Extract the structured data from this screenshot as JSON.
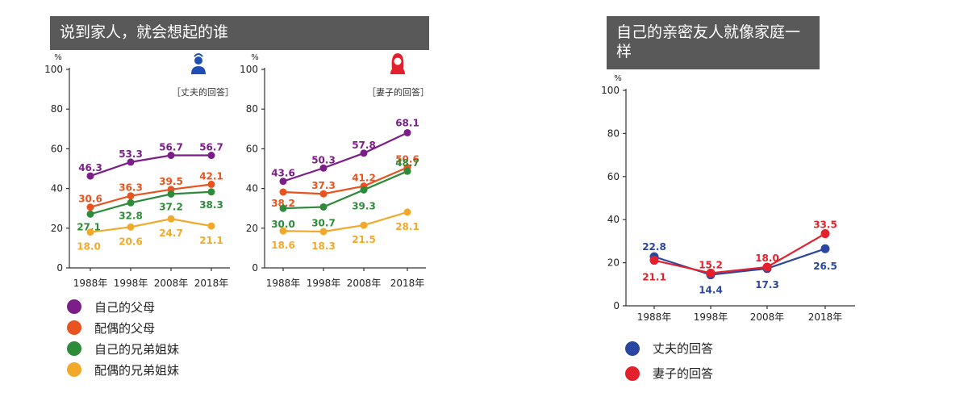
{
  "titles": {
    "left": "说到家人，就会想起的谁",
    "right": "自己的亲密友人就像家庭一样"
  },
  "legend_left": [
    {
      "label": "自己的父母",
      "color": "#7b1e87"
    },
    {
      "label": "配偶的父母",
      "color": "#e8531f"
    },
    {
      "label": "自己的兄弟姐妹",
      "color": "#2e8b3a"
    },
    {
      "label": "配偶的兄弟姐妹",
      "color": "#f2a929"
    }
  ],
  "legend_right": [
    {
      "label": "丈夫的回答",
      "color": "#2b46a0"
    },
    {
      "label": "妻子的回答",
      "color": "#e3202b"
    }
  ],
  "chart_data": [
    {
      "type": "line",
      "title": "丈夫的回答",
      "ylabel": "%",
      "categories": [
        "1988年",
        "1998年",
        "2008年",
        "2018年"
      ],
      "ylim": [
        0,
        100
      ],
      "yticks": [
        0,
        20,
        40,
        60,
        80,
        100
      ],
      "series": [
        {
          "name": "自己的父母",
          "color": "#7b1e87",
          "values": [
            46.3,
            53.3,
            56.7,
            56.7
          ],
          "labels": [
            "46.3",
            "53.3",
            "56.7",
            "56.7"
          ]
        },
        {
          "name": "配偶的父母",
          "color": "#e8531f",
          "values": [
            30.6,
            36.3,
            39.5,
            42.1
          ],
          "labels": [
            "30.6",
            "36.3",
            "39.5",
            "42.1"
          ]
        },
        {
          "name": "自己的兄弟姐妹",
          "color": "#2e8b3a",
          "values": [
            27.1,
            32.8,
            37.2,
            38.3
          ],
          "labels": [
            "27.1",
            "32.8",
            "37.2",
            "38.3"
          ]
        },
        {
          "name": "配偶的兄弟姐妹",
          "color": "#f2a929",
          "values": [
            18.0,
            20.6,
            24.7,
            21.1
          ],
          "labels": [
            "18.0",
            "20.6",
            "24.7",
            "21.1"
          ]
        }
      ]
    },
    {
      "type": "line",
      "title": "妻子的回答",
      "ylabel": "%",
      "categories": [
        "1988年",
        "1998年",
        "2008年",
        "2018年"
      ],
      "ylim": [
        0,
        100
      ],
      "yticks": [
        0,
        20,
        40,
        60,
        80,
        100
      ],
      "series": [
        {
          "name": "自己的父母",
          "color": "#7b1e87",
          "values": [
            43.6,
            50.3,
            57.8,
            68.1
          ],
          "labels": [
            "43.6",
            "50.3",
            "57.8",
            "68.1"
          ]
        },
        {
          "name": "配偶的父母",
          "color": "#e8531f",
          "values": [
            38.2,
            37.3,
            41.2,
            50.6
          ],
          "labels": [
            "38.2",
            "37.3",
            "41.2",
            "50.6"
          ]
        },
        {
          "name": "自己的兄弟姐妹",
          "color": "#2e8b3a",
          "values": [
            30.0,
            30.7,
            39.3,
            48.7
          ],
          "labels": [
            "30.0",
            "30.7",
            "39.3",
            "48.7"
          ]
        },
        {
          "name": "配偶的兄弟姐妹",
          "color": "#f2a929",
          "values": [
            18.6,
            18.3,
            21.5,
            28.1
          ],
          "labels": [
            "18.6",
            "18.3",
            "21.5",
            "28.1"
          ]
        }
      ]
    },
    {
      "type": "line",
      "title": "自己的亲密友人就像家庭一样",
      "ylabel": "%",
      "categories": [
        "1988年",
        "1998年",
        "2008年",
        "2018年"
      ],
      "ylim": [
        0,
        100
      ],
      "yticks": [
        0,
        20,
        40,
        60,
        80,
        100
      ],
      "series": [
        {
          "name": "丈夫的回答",
          "color": "#2b46a0",
          "values": [
            22.8,
            14.4,
            17.3,
            26.5
          ],
          "labels": [
            "22.8",
            "14.4",
            "17.3",
            "26.5"
          ]
        },
        {
          "name": "妻子的回答",
          "color": "#e3202b",
          "values": [
            21.1,
            15.2,
            18.0,
            33.5
          ],
          "labels": [
            "21.1",
            "15.2",
            "18.0",
            "33.5"
          ]
        }
      ]
    }
  ],
  "panel_tags": {
    "husband": "［丈夫的回答］",
    "wife": "［妻子的回答］"
  },
  "icons": {
    "husband": "male-person-icon",
    "wife": "female-person-icon"
  }
}
